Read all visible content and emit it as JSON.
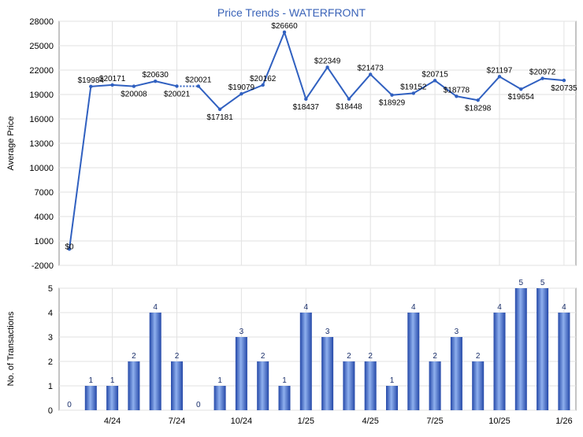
{
  "chart_data": [
    {
      "type": "line",
      "title": "Price Trends - WATERFRONT",
      "ylabel": "Average Price",
      "ylim": [
        -2000,
        28000
      ],
      "yticks": [
        -2000,
        1000,
        4000,
        7000,
        10000,
        13000,
        16000,
        19000,
        22000,
        25000,
        28000
      ],
      "xtick_labels": [
        "4/24",
        "7/24",
        "10/24",
        "1/25",
        "4/25",
        "7/25",
        "10/25",
        "1/26"
      ],
      "series": [
        {
          "color": "#3060c0",
          "values": [
            0,
            19984,
            20171,
            20008,
            20630,
            20021,
            20021,
            17181,
            19079,
            20162,
            26660,
            18437,
            22349,
            18448,
            21473,
            18929,
            19152,
            20715,
            18778,
            18298,
            21197,
            19654,
            20972,
            20735
          ],
          "labels": [
            "$0",
            "$19984",
            "$20171",
            "$20008",
            "$20630",
            "$20021",
            "$20021",
            "$17181",
            "$19079",
            "$20162",
            "$26660",
            "$18437",
            "$22349",
            "$18448",
            "$21473",
            "$18929",
            "$19152",
            "$20715",
            "$18778",
            "$18298",
            "$21197",
            "$19654",
            "$20972",
            "$20735"
          ],
          "dotted_segments": [
            [
              5,
              6
            ]
          ]
        }
      ],
      "grid": true
    },
    {
      "type": "bar",
      "ylabel": "No. of Transactions",
      "ylim": [
        0,
        5
      ],
      "yticks": [
        0,
        1,
        2,
        3,
        4,
        5
      ],
      "xtick_labels": [
        "4/24",
        "7/24",
        "10/24",
        "1/25",
        "4/25",
        "7/25",
        "10/25",
        "1/26"
      ],
      "values": [
        0,
        1,
        1,
        2,
        4,
        2,
        0,
        1,
        3,
        2,
        1,
        4,
        3,
        2,
        2,
        1,
        4,
        2,
        3,
        2,
        4,
        5,
        5,
        4
      ],
      "colors": {
        "bar_light": "#8fb0ee",
        "bar_dark": "#2448a8",
        "label": "#1a2f6b"
      },
      "grid": true
    }
  ]
}
